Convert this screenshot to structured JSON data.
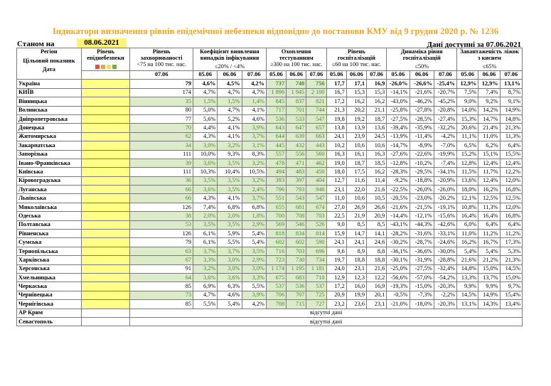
{
  "title": "Індикатори визначення рівнів епідемічної небезпеки відповідно до постанови КМУ від 9 грудня 2020 р. № 1236",
  "stanom_label": "Станом на",
  "stanom_date": "08.06.2021",
  "available": "Дані доступні за 07.06.2021",
  "headers": {
    "region": "Регіон",
    "indicator": "Цільовий показник",
    "date": "Дата",
    "level": "Рівень епіднебезпеки",
    "morbidity": "Рівень захворюваності",
    "morbidity_target": "<75 на 100 тис. нас.",
    "detection": "Коефіцієнт виявлення випадків інфікування",
    "detection_target": "≤20% / <4%",
    "testing": "Охоплення тестуванням",
    "testing_target": "≥300 на 100 тис. нас.",
    "hosp": "Рівень госпіталізацій",
    "hosp_target": "≤60 на 100 тис. нас.",
    "dynamics": "Динаміка рівня госпіталізацій",
    "dynamics_target": "≤50%",
    "occupancy": "Завантаженість ліжок з киснем",
    "occupancy_target": "≤65%",
    "last_date": "07.06",
    "dates3": [
      "05.06",
      "06.06",
      "07.06"
    ]
  },
  "no_data": "відсутні дані",
  "rows": [
    {
      "name": "Україна",
      "y": true,
      "total": true,
      "m": "79",
      "d": [
        "4,6%",
        "4,5%",
        "4,2%"
      ],
      "t": [
        "737",
        "740",
        "756"
      ],
      "h": [
        "17,7",
        "17,1",
        "16,9"
      ],
      "dy": [
        "-26,0%",
        "-26,6%",
        "-25,4%"
      ],
      "o": [
        "12,9%",
        "12,9%",
        "13,1%"
      ]
    },
    {
      "name": "КИЇВ",
      "y": true,
      "m": "174",
      "d": [
        "4,7%",
        "4,7%",
        "4,7%"
      ],
      "t": [
        "1 896",
        "1 945",
        "2 100"
      ],
      "h": [
        "16,7",
        "15,3",
        "15,3"
      ],
      "dy": [
        "-14,1%",
        "-21,6%",
        "-20,7%"
      ],
      "o": [
        "7,5%",
        "7,4%",
        "8,7%"
      ]
    },
    {
      "name": "Вінницька",
      "y": true,
      "m": "35",
      "d": [
        "1,5%",
        "1,5%",
        "1,4%"
      ],
      "t": [
        "845",
        "837",
        "821"
      ],
      "h": [
        "17,2",
        "16,2",
        "16,2"
      ],
      "dy": [
        "-43,0%",
        "-46,2%",
        "-45,2%"
      ],
      "o": [
        "9,0%",
        "9,2%",
        "9,1%"
      ]
    },
    {
      "name": "Волинська",
      "y": true,
      "m": "80",
      "d": [
        "5,0%",
        "4,7%",
        "4,1%"
      ],
      "t": [
        "717",
        "701",
        "744"
      ],
      "h": [
        "21,3",
        "20,2",
        "21,1"
      ],
      "dy": [
        "-25,8%",
        "-27,8%",
        "-20,8%"
      ],
      "o": [
        "14,0%",
        "14,2%",
        "14,9%"
      ]
    },
    {
      "name": "Дніпропетровська",
      "y": true,
      "m": "77",
      "d": [
        "5,6%",
        "5,2%",
        "4,6%"
      ],
      "t": [
        "536",
        "533",
        "547"
      ],
      "h": [
        "19,8",
        "19,2",
        "18,7"
      ],
      "dy": [
        "-27,5%",
        "-28,5%",
        "-27,4%"
      ],
      "o": [
        "15,3%",
        "14,7%",
        "14,8%"
      ]
    },
    {
      "name": "Донецька",
      "y": true,
      "m": "70",
      "d": [
        "4,4%",
        "4,1%",
        "3,9%"
      ],
      "t": [
        "643",
        "647",
        "657"
      ],
      "h": [
        "13,8",
        "13,9",
        "13,6"
      ],
      "dy": [
        "-39,4%",
        "-35,9%",
        "-32,2%"
      ],
      "o": [
        "20,6%",
        "21,4%",
        "21,3%"
      ]
    },
    {
      "name": "Житомирська",
      "y": true,
      "m": "62",
      "d": [
        "4,3%",
        "4,1%",
        "3,7%"
      ],
      "t": [
        "644",
        "639",
        "663"
      ],
      "h": [
        "24,1",
        "23,9",
        "24,5"
      ],
      "dy": [
        "-13,9%",
        "-11,4%",
        "-4,2%"
      ],
      "o": [
        "11,1%",
        "11,0%",
        "11,3%"
      ]
    },
    {
      "name": "Закарпатська",
      "y": true,
      "m": "34",
      "d": [
        "3,0%",
        "3,2%",
        "3,1%"
      ],
      "t": [
        "445",
        "432",
        "443"
      ],
      "h": [
        "10,2",
        "10,6",
        "10,6"
      ],
      "dy": [
        "-14,7%",
        "-8,9%",
        "-7,0%"
      ],
      "o": [
        "6,5%",
        "6,2%",
        "6,4%"
      ]
    },
    {
      "name": "Запорізька",
      "y": true,
      "m": "111",
      "d": [
        "10,0%",
        "9,3%",
        "8,3%"
      ],
      "t": [
        "557",
        "556",
        "560"
      ],
      "h": [
        "16,3",
        "16,1",
        "16,3"
      ],
      "dy": [
        "-27,6%",
        "-22,6%",
        "-19,9%"
      ],
      "o": [
        "15,2%",
        "15,1%",
        "15,5%"
      ]
    },
    {
      "name": "Івано-Франківська",
      "y": true,
      "two": true,
      "m": "39",
      "d": [
        "3,6%",
        "3,5%",
        "3,2%"
      ],
      "t": [
        "478",
        "471",
        "462"
      ],
      "h": [
        "19,0",
        "18,7",
        "18,5"
      ],
      "dy": [
        "-12,8%",
        "-10,2%",
        "-7,4%"
      ],
      "o": [
        "12,8%",
        "12,4%",
        "12,4%"
      ]
    },
    {
      "name": "Київська",
      "y": true,
      "m": "111",
      "d": [
        "10,3%",
        "10,4%",
        "10,5%"
      ],
      "t": [
        "494",
        "483",
        "450"
      ],
      "h": [
        "18,0",
        "17,5",
        "16,2"
      ],
      "dy": [
        "-28,3%",
        "-29,5%",
        "-34,1%"
      ],
      "o": [
        "11,5%",
        "11,7%",
        "12,2%"
      ]
    },
    {
      "name": "Кіровоградська",
      "y": true,
      "m": "36",
      "d": [
        "3,5%",
        "3,5%",
        "3,2%"
      ],
      "t": [
        "393",
        "397",
        "404"
      ],
      "h": [
        "12,7",
        "11,6",
        "11,4"
      ],
      "dy": [
        "-9,2%",
        "-18,8%",
        "-20,9%"
      ],
      "o": [
        "13,6%",
        "12,4%",
        "12,0%"
      ]
    },
    {
      "name": "Луганська",
      "y": true,
      "m": "66",
      "d": [
        "3,6%",
        "3,5%",
        "2,4%"
      ],
      "t": [
        "796",
        "793",
        "946"
      ],
      "h": [
        "23,1",
        "22,0",
        "21,6"
      ],
      "dy": [
        "-22,5%",
        "-26,0%",
        "-26,0%"
      ],
      "o": [
        "18,0%",
        "16,2%",
        "16,8%"
      ]
    },
    {
      "name": "Львівська",
      "y": true,
      "m": "66",
      "d": [
        "4,3%",
        "4,1%",
        "3,7%"
      ],
      "t": [
        "551",
        "543",
        "547"
      ],
      "h": [
        "11,0",
        "10,6",
        "10,5"
      ],
      "dy": [
        "-20,5%",
        "-23,0%",
        "-20,2%"
      ],
      "o": [
        "12,1%",
        "12,5%",
        "12,5%"
      ]
    },
    {
      "name": "Миколаївська",
      "y": true,
      "m": "126",
      "d": [
        "7,4%",
        "6,8%",
        "6,8%"
      ],
      "t": [
        "655",
        "681",
        "674"
      ],
      "h": [
        "27,0",
        "26,9",
        "26,6"
      ],
      "dy": [
        "-21,6%",
        "-21,5%",
        "-19,1%"
      ],
      "o": [
        "10,8%",
        "11,3%",
        "12,0%"
      ]
    },
    {
      "name": "Одеська",
      "y": true,
      "m": "38",
      "d": [
        "2,0%",
        "2,0%",
        "1,8%"
      ],
      "t": [
        "700",
        "708",
        "703"
      ],
      "h": [
        "22,5",
        "21,9",
        "20,9"
      ],
      "dy": [
        "-14,4%",
        "-12,1%",
        "-15,6%"
      ],
      "o": [
        "16,4%",
        "16,4%",
        "16,8%"
      ]
    },
    {
      "name": "Полтавська",
      "y": true,
      "m": "53",
      "d": [
        "3,5%",
        "3,5%",
        "2,9%"
      ],
      "t": [
        "569",
        "546",
        "526"
      ],
      "h": [
        "9,0",
        "8,5",
        "8,5"
      ],
      "dy": [
        "-43,1%",
        "-44,3%",
        "-42,6%"
      ],
      "o": [
        "6,0%",
        "6,4%",
        "6,4%"
      ]
    },
    {
      "name": "Рівненська",
      "y": true,
      "m": "126",
      "d": [
        "6,1%",
        "5,9%",
        "5,4%"
      ],
      "t": [
        "818",
        "834",
        "814"
      ],
      "h": [
        "15,9",
        "14,7",
        "14,1"
      ],
      "dy": [
        "-28,2%",
        "-31,6%",
        "-33,1%"
      ],
      "o": [
        "11,0%",
        "11,2%",
        "11,2%"
      ]
    },
    {
      "name": "Сумська",
      "y": true,
      "m": "79",
      "d": [
        "6,1%",
        "5,5%",
        "5,4%"
      ],
      "t": [
        "602",
        "602",
        "590"
      ],
      "h": [
        "24,1",
        "24,1",
        "24,6"
      ],
      "dy": [
        "-30,2%",
        "-28,7%",
        "-24,6%"
      ],
      "o": [
        "16,2%",
        "16,7%",
        "17,3%"
      ]
    },
    {
      "name": "Тернопільська",
      "y": true,
      "m": "63",
      "d": [
        "3,7%",
        "3,7%",
        "3,5%"
      ],
      "t": [
        "716",
        "703",
        "696"
      ],
      "h": [
        "9,6",
        "8,9",
        "8,8"
      ],
      "dy": [
        "-36,1%",
        "-36,6%",
        "-30,0%"
      ],
      "o": [
        "5,4%",
        "5,4%",
        "5,3%"
      ]
    },
    {
      "name": "Харківська",
      "y": true,
      "m": "67",
      "d": [
        "3,3%",
        "3,0%",
        "2,9%"
      ],
      "t": [
        "723",
        "730",
        "734"
      ],
      "h": [
        "19,7",
        "18,8",
        "18,8"
      ],
      "dy": [
        "-30,1%",
        "-31,9%",
        "-28,8%"
      ],
      "o": [
        "21,6%",
        "21,2%",
        "21,3%"
      ]
    },
    {
      "name": "Херсонська",
      "y": true,
      "m": "91",
      "d": [
        "3,2%",
        "3,0%",
        "3,0%"
      ],
      "t": [
        "1 174",
        "1 195",
        "1 181"
      ],
      "h": [
        "24,0",
        "23,1",
        "21,6"
      ],
      "dy": [
        "-25,0%",
        "-27,5%",
        "-32,4%"
      ],
      "o": [
        "14,8%",
        "15,0%",
        "14,5%"
      ]
    },
    {
      "name": "Хмельницька",
      "y": true,
      "m": "64",
      "d": [
        "3,6%",
        "3,6%",
        "3,3%"
      ],
      "t": [
        "675",
        "683",
        "710"
      ],
      "h": [
        "12,9",
        "12,3",
        "12,2"
      ],
      "dy": [
        "-56,6%",
        "-57,0%",
        "-54,2%"
      ],
      "o": [
        "13,3%",
        "13,7%",
        "15,0%"
      ]
    },
    {
      "name": "Черкаська",
      "y": true,
      "m": "85",
      "d": [
        "6,9%",
        "6,3%",
        "5,5%"
      ],
      "t": [
        "537",
        "536",
        "537"
      ],
      "h": [
        "17,2",
        "16,0",
        "16,9"
      ],
      "dy": [
        "-19,3%",
        "-15,0%",
        "-20,3%"
      ],
      "o": [
        "9,9%",
        "9,9%",
        "9,7%"
      ]
    },
    {
      "name": "Чернівецька",
      "y": true,
      "m": "73",
      "d": [
        "4,7%",
        "4,6%",
        "3,9%"
      ],
      "t": [
        "706",
        "707",
        "725"
      ],
      "h": [
        "20,9",
        "19,9",
        "20,1"
      ],
      "dy": [
        "-0,5%",
        "-7,3%",
        "-2,2%"
      ],
      "o": [
        "14,5%",
        "14,9%",
        "15,4%"
      ]
    },
    {
      "name": "Чернігівська",
      "y": true,
      "m": "85",
      "d": [
        "5,5%",
        "5,4%",
        "4,2%"
      ],
      "t": [
        "708",
        "715",
        "727"
      ],
      "h": [
        "23,2",
        "23,6",
        "23,1"
      ],
      "dy": [
        "-21,0%",
        "-18,0%",
        "-20,3%"
      ],
      "o": [
        "13,1%",
        "14,3%",
        "13,4%"
      ]
    },
    {
      "name": "АР Крим",
      "nodata": true
    },
    {
      "name": "Севастополь",
      "nodata": true
    }
  ],
  "colors": {
    "title": "#f5a623",
    "yellow": "#ffff88",
    "green_fill": "#dcebc9",
    "green_text": "#4a8a2a",
    "swatches": [
      "#e05050",
      "#f0a040",
      "#f0e060",
      "#70b040"
    ]
  }
}
